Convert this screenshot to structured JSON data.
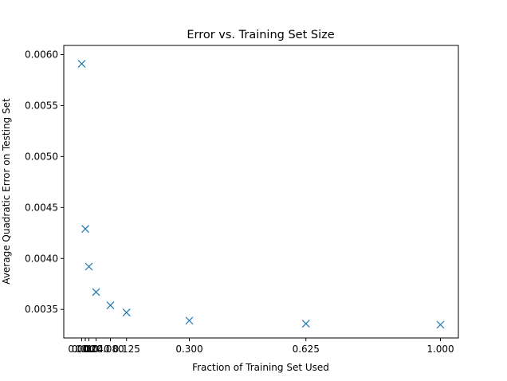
{
  "chart_data": {
    "type": "scatter",
    "title": "Error vs. Training Set Size",
    "xlabel": "Fraction of Training Set Used",
    "ylabel": "Average Quadratic Error on Testing Set",
    "marker": "x",
    "color": "#1f77b4",
    "grid": false,
    "legend": "none",
    "xlim": [
      -0.05,
      1.05
    ],
    "ylim": [
      0.00322,
      0.00609
    ],
    "x_tick_values": [
      0.0,
      0.01,
      0.02,
      0.04,
      0.08,
      0.125,
      0.3,
      0.625,
      1.0
    ],
    "x_tick_labels": [
      "0.000",
      "0.010",
      "0.020",
      "0.040",
      "0.080",
      "0.125",
      "0.300",
      "0.625",
      "1.000"
    ],
    "y_tick_values": [
      0.0035,
      0.004,
      0.0045,
      0.005,
      0.0055,
      0.006
    ],
    "y_tick_labels": [
      "0.0035",
      "0.0040",
      "0.0045",
      "0.0050",
      "0.0055",
      "0.0060"
    ],
    "points": [
      {
        "x": 0.0,
        "y": 0.00591
      },
      {
        "x": 0.01,
        "y": 0.00429
      },
      {
        "x": 0.02,
        "y": 0.00392
      },
      {
        "x": 0.04,
        "y": 0.00367
      },
      {
        "x": 0.08,
        "y": 0.00354
      },
      {
        "x": 0.125,
        "y": 0.00347
      },
      {
        "x": 0.3,
        "y": 0.00339
      },
      {
        "x": 0.625,
        "y": 0.00336
      },
      {
        "x": 1.0,
        "y": 0.00335
      }
    ]
  }
}
